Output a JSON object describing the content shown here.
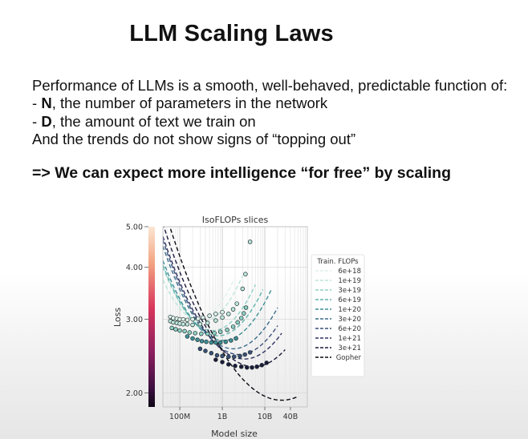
{
  "slide": {
    "title": "LLM Scaling Laws",
    "intro": "Performance of LLMs is a smooth, well-behaved, predictable function of:",
    "bullet_n_dash": "- ",
    "bullet_n_key": "N",
    "bullet_n_text": ", the number of parameters in the network",
    "bullet_d_dash": "- ",
    "bullet_d_key": "D",
    "bullet_d_text": ", the amount of text we train on",
    "trend": "And the trends do not show signs of “topping out”",
    "conclusion": "=> We can expect more intelligence “for free” by scaling"
  },
  "chart_data": {
    "type": "line",
    "title": "IsoFLOPs slices",
    "xlabel": "Model size",
    "ylabel": "Loss",
    "x_scale": "log",
    "y_scale": "log",
    "xlim": [
      40000000,
      100000000000
    ],
    "ylim": [
      1.85,
      5.0
    ],
    "x_ticks": [
      {
        "value": 100000000,
        "label": "100M"
      },
      {
        "value": 1000000000,
        "label": "1B"
      },
      {
        "value": 10000000000,
        "label": "10B"
      },
      {
        "value": 40000000000,
        "label": "40B"
      }
    ],
    "y_ticks": [
      {
        "value": 2.0,
        "label": "2.00"
      },
      {
        "value": 3.0,
        "label": "3.00"
      },
      {
        "value": 4.0,
        "label": "4.00"
      },
      {
        "value": 5.0,
        "label": "5.00"
      }
    ],
    "grid": true,
    "legend_title": "Train. FLOPs",
    "legend_position": "right",
    "colorbar": true,
    "series": [
      {
        "name": "6e+18",
        "color": "#dff2ea",
        "opt_x": 270000000,
        "opt_y": 3.02,
        "curvature": 0.13,
        "min_x": 40000000,
        "max_x": 1800000000
      },
      {
        "name": "1e+19",
        "color": "#bfe6dc",
        "opt_x": 330000000,
        "opt_y": 2.96,
        "curvature": 0.12,
        "min_x": 40000000,
        "max_x": 3000000000
      },
      {
        "name": "3e+19",
        "color": "#8fd0c4",
        "opt_x": 600000000,
        "opt_y": 2.82,
        "curvature": 0.11,
        "min_x": 40000000,
        "max_x": 6000000000
      },
      {
        "name": "6e+19",
        "color": "#5fb4ab",
        "opt_x": 800000000,
        "opt_y": 2.74,
        "curvature": 0.1,
        "min_x": 40000000,
        "max_x": 9000000000
      },
      {
        "name": "1e+20",
        "color": "#3f8f97",
        "opt_x": 1050000000,
        "opt_y": 2.67,
        "curvature": 0.095,
        "min_x": 40000000,
        "max_x": 14000000000
      },
      {
        "name": "3e+20",
        "color": "#3b6d8a",
        "opt_x": 1800000000,
        "opt_y": 2.55,
        "curvature": 0.09,
        "min_x": 40000000,
        "max_x": 20000000000
      },
      {
        "name": "6e+20",
        "color": "#3a4f78",
        "opt_x": 2500000000,
        "opt_y": 2.47,
        "curvature": 0.085,
        "min_x": 40000000,
        "max_x": 20000000000
      },
      {
        "name": "1e+21",
        "color": "#2e3160",
        "opt_x": 3300000000,
        "opt_y": 2.41,
        "curvature": 0.08,
        "min_x": 40000000,
        "max_x": 25000000000
      },
      {
        "name": "3e+21",
        "color": "#1c1a3a",
        "opt_x": 5500000000,
        "opt_y": 2.31,
        "curvature": 0.075,
        "min_x": 40000000,
        "max_x": 30000000000
      },
      {
        "name": "Gopher",
        "color": "#0a0a14",
        "opt_x": 25000000000,
        "opt_y": 1.92,
        "curvature": 0.06,
        "min_x": 40000000,
        "max_x": 60000000000
      }
    ],
    "points": [
      {
        "x": 60000000,
        "y": 3.04,
        "s": 0
      },
      {
        "x": 70000000,
        "y": 3.02,
        "s": 0
      },
      {
        "x": 85000000,
        "y": 3.01,
        "s": 0
      },
      {
        "x": 100000000,
        "y": 3.0,
        "s": 0
      },
      {
        "x": 120000000,
        "y": 3.0,
        "s": 0
      },
      {
        "x": 150000000,
        "y": 2.99,
        "s": 0
      },
      {
        "x": 200000000,
        "y": 3.0,
        "s": 0
      },
      {
        "x": 270000000,
        "y": 3.01,
        "s": 0
      },
      {
        "x": 350000000,
        "y": 3.03,
        "s": 0
      },
      {
        "x": 500000000,
        "y": 3.06,
        "s": 0
      },
      {
        "x": 700000000,
        "y": 3.09,
        "s": 0
      },
      {
        "x": 1000000000,
        "y": 3.12,
        "s": 0
      },
      {
        "x": 60000000,
        "y": 2.97,
        "s": 1
      },
      {
        "x": 70000000,
        "y": 2.95,
        "s": 1
      },
      {
        "x": 85000000,
        "y": 2.94,
        "s": 1
      },
      {
        "x": 100000000,
        "y": 2.93,
        "s": 1
      },
      {
        "x": 120000000,
        "y": 2.92,
        "s": 1
      },
      {
        "x": 150000000,
        "y": 2.92,
        "s": 1
      },
      {
        "x": 200000000,
        "y": 2.91,
        "s": 1
      },
      {
        "x": 300000000,
        "y": 2.92,
        "s": 1
      },
      {
        "x": 450000000,
        "y": 2.94,
        "s": 1
      },
      {
        "x": 700000000,
        "y": 2.98,
        "s": 1
      },
      {
        "x": 1000000000,
        "y": 3.03,
        "s": 1
      },
      {
        "x": 1400000000,
        "y": 3.09,
        "s": 1
      },
      {
        "x": 1800000000,
        "y": 3.17,
        "s": 1
      },
      {
        "x": 2200000000,
        "y": 3.27,
        "s": 1
      },
      {
        "x": 3000000000,
        "y": 3.55,
        "s": 1
      },
      {
        "x": 3500000000,
        "y": 3.85,
        "s": 1
      },
      {
        "x": 4500000000,
        "y": 4.6,
        "s": 1
      },
      {
        "x": 65000000,
        "y": 2.86,
        "s": 2
      },
      {
        "x": 80000000,
        "y": 2.84,
        "s": 2
      },
      {
        "x": 100000000,
        "y": 2.82,
        "s": 2
      },
      {
        "x": 130000000,
        "y": 2.81,
        "s": 2
      },
      {
        "x": 170000000,
        "y": 2.79,
        "s": 2
      },
      {
        "x": 230000000,
        "y": 2.78,
        "s": 2
      },
      {
        "x": 320000000,
        "y": 2.77,
        "s": 2
      },
      {
        "x": 450000000,
        "y": 2.77,
        "s": 2
      },
      {
        "x": 650000000,
        "y": 2.78,
        "s": 2
      },
      {
        "x": 900000000,
        "y": 2.8,
        "s": 2
      },
      {
        "x": 1300000000,
        "y": 2.83,
        "s": 2
      },
      {
        "x": 1800000000,
        "y": 2.88,
        "s": 2
      },
      {
        "x": 2300000000,
        "y": 2.95,
        "s": 2
      },
      {
        "x": 2800000000,
        "y": 3.02,
        "s": 2
      },
      {
        "x": 3200000000,
        "y": 3.1,
        "s": 2
      },
      {
        "x": 3600000000,
        "y": 3.2,
        "s": 2
      },
      {
        "x": 150000000,
        "y": 2.73,
        "s": 4
      },
      {
        "x": 200000000,
        "y": 2.7,
        "s": 4
      },
      {
        "x": 260000000,
        "y": 2.68,
        "s": 4
      },
      {
        "x": 330000000,
        "y": 2.66,
        "s": 4
      },
      {
        "x": 420000000,
        "y": 2.65,
        "s": 4
      },
      {
        "x": 550000000,
        "y": 2.64,
        "s": 4
      },
      {
        "x": 700000000,
        "y": 2.64,
        "s": 4
      },
      {
        "x": 900000000,
        "y": 2.64,
        "s": 4
      },
      {
        "x": 1200000000,
        "y": 2.65,
        "s": 4
      },
      {
        "x": 1600000000,
        "y": 2.67,
        "s": 4
      },
      {
        "x": 2100000000,
        "y": 2.7,
        "s": 4
      },
      {
        "x": 300000000,
        "y": 2.55,
        "s": 6
      },
      {
        "x": 400000000,
        "y": 2.52,
        "s": 6
      },
      {
        "x": 550000000,
        "y": 2.49,
        "s": 6
      },
      {
        "x": 750000000,
        "y": 2.46,
        "s": 6
      },
      {
        "x": 1000000000,
        "y": 2.45,
        "s": 6
      },
      {
        "x": 1400000000,
        "y": 2.44,
        "s": 6
      },
      {
        "x": 1900000000,
        "y": 2.44,
        "s": 6
      },
      {
        "x": 2600000000,
        "y": 2.45,
        "s": 6
      },
      {
        "x": 3400000000,
        "y": 2.47,
        "s": 6
      },
      {
        "x": 4500000000,
        "y": 2.5,
        "s": 6
      },
      {
        "x": 700000000,
        "y": 2.4,
        "s": 8
      },
      {
        "x": 1000000000,
        "y": 2.37,
        "s": 8
      },
      {
        "x": 1400000000,
        "y": 2.34,
        "s": 8
      },
      {
        "x": 2000000000,
        "y": 2.32,
        "s": 8
      },
      {
        "x": 2800000000,
        "y": 2.31,
        "s": 8
      },
      {
        "x": 3800000000,
        "y": 2.3,
        "s": 8
      },
      {
        "x": 5000000000,
        "y": 2.3,
        "s": 8
      },
      {
        "x": 6500000000,
        "y": 2.31,
        "s": 8
      },
      {
        "x": 8500000000,
        "y": 2.33,
        "s": 8
      },
      {
        "x": 11000000000,
        "y": 2.36,
        "s": 8
      }
    ]
  }
}
